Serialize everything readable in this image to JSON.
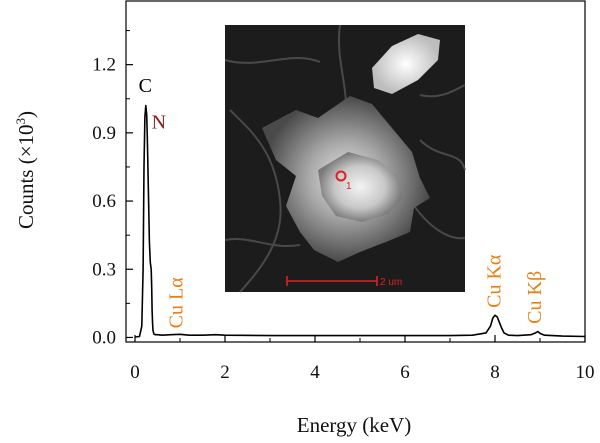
{
  "chart_data": {
    "type": "line",
    "title": "",
    "xlabel": "Energy (keV)",
    "ylabel_prefix": "Counts (×10",
    "ylabel_sup": "3",
    "ylabel_suffix": ")",
    "xlim": [
      -0.2,
      10
    ],
    "ylim": [
      -0.02,
      1.48
    ],
    "x_ticks": [
      0,
      2,
      4,
      6,
      8,
      10
    ],
    "x_tick_labels": [
      "0",
      "2",
      "4",
      "6",
      "8",
      "10"
    ],
    "y_ticks": [
      0.0,
      0.3,
      0.6,
      0.9,
      1.2
    ],
    "y_tick_labels": [
      "0.0",
      "0.3",
      "0.6",
      "0.9",
      "1.2"
    ],
    "grid": false,
    "series": [
      {
        "color": "#000000",
        "x": [
          0.0,
          0.1,
          0.15,
          0.18,
          0.2,
          0.22,
          0.24,
          0.26,
          0.27,
          0.28,
          0.3,
          0.32,
          0.34,
          0.36,
          0.37,
          0.38,
          0.39,
          0.4,
          0.42,
          0.45,
          0.5,
          0.6,
          0.8,
          1.0,
          1.2,
          1.5,
          1.8,
          2.0,
          3.0,
          4.0,
          5.0,
          6.0,
          7.0,
          7.5,
          7.8,
          7.9,
          7.95,
          8.0,
          8.05,
          8.1,
          8.15,
          8.2,
          8.3,
          8.5,
          8.8,
          8.9,
          8.95,
          9.0,
          9.1,
          9.5,
          10.0
        ],
        "y": [
          0.002,
          0.004,
          0.05,
          0.3,
          0.75,
          0.97,
          1.02,
          0.98,
          0.9,
          0.82,
          0.62,
          0.42,
          0.33,
          0.3,
          0.22,
          0.12,
          0.06,
          0.03,
          0.015,
          0.012,
          0.012,
          0.01,
          0.012,
          0.014,
          0.01,
          0.01,
          0.012,
          0.01,
          0.008,
          0.008,
          0.008,
          0.008,
          0.008,
          0.01,
          0.02,
          0.05,
          0.085,
          0.098,
          0.09,
          0.065,
          0.04,
          0.02,
          0.01,
          0.008,
          0.012,
          0.02,
          0.026,
          0.018,
          0.01,
          0.006,
          0.004
        ]
      }
    ],
    "annotations": [
      {
        "text": "C",
        "x": 0.23,
        "y": 1.08,
        "color": "#000000",
        "rotate": 0
      },
      {
        "text": "N",
        "x": 0.53,
        "y": 0.92,
        "color": "#8b1a1a",
        "rotate": 0
      },
      {
        "text": "Cu Lα",
        "x": 1.05,
        "y": 0.04,
        "color": "#e8801a",
        "rotate": -90
      },
      {
        "text": "Cu Kα",
        "x": 8.12,
        "y": 0.13,
        "color": "#e8801a",
        "rotate": -90
      },
      {
        "text": "Cu Kβ",
        "x": 9.02,
        "y": 0.06,
        "color": "#e8801a",
        "rotate": -90
      }
    ],
    "inset": {
      "point_label": "1",
      "scale_bar_label": "2 um",
      "marker_color": "#e02020"
    }
  }
}
